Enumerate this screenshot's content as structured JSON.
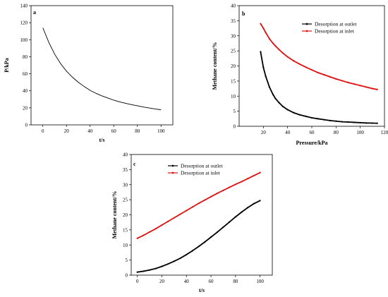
{
  "chart_data": [
    {
      "panel": "a",
      "type": "line",
      "xlabel": "t/s",
      "ylabel": "P/kPa",
      "xlim": [
        -10,
        110
      ],
      "ylim": [
        0,
        140
      ],
      "xticks": [
        0,
        20,
        40,
        60,
        80,
        100
      ],
      "yticks": [
        0,
        20,
        40,
        60,
        80,
        100,
        120,
        140
      ],
      "series": [
        {
          "color": "#000000",
          "marker": "none",
          "x": [
            0,
            5,
            10,
            15,
            20,
            25,
            30,
            35,
            40,
            45,
            50,
            55,
            60,
            65,
            70,
            75,
            80,
            85,
            90,
            95,
            100
          ],
          "y": [
            114,
            97,
            83,
            72,
            63,
            56,
            50,
            45,
            40.5,
            37,
            34,
            31.5,
            29,
            27,
            25.3,
            23.8,
            22.4,
            21,
            19.8,
            18.7,
            17.7
          ]
        }
      ]
    },
    {
      "panel": "b",
      "type": "line",
      "xlabel": "Pressure/kPa",
      "ylabel": "Methane content/%",
      "xlim": [
        0,
        120
      ],
      "ylim": [
        0,
        40
      ],
      "xticks": [
        20,
        40,
        60,
        80,
        100,
        120
      ],
      "yticks": [
        0,
        5,
        10,
        15,
        20,
        25,
        30,
        35,
        40
      ],
      "legend_position": "top-right",
      "series": [
        {
          "name": "Desorption at outlet",
          "color": "#000000",
          "marker": "dot",
          "x": [
            17.7,
            20,
            22,
            25,
            28,
            30,
            33,
            36,
            40,
            45,
            50,
            55,
            60,
            65,
            70,
            75,
            80,
            85,
            90,
            95,
            100,
            105,
            110,
            114
          ],
          "y": [
            24.7,
            19.5,
            16.5,
            13,
            10.5,
            9.2,
            7.8,
            6.6,
            5.5,
            4.5,
            3.8,
            3.3,
            2.8,
            2.5,
            2.2,
            1.9,
            1.7,
            1.5,
            1.4,
            1.3,
            1.2,
            1.1,
            1.05,
            1
          ]
        },
        {
          "name": "Desorption at inlet",
          "color": "#e01010",
          "marker": "dot",
          "x": [
            17.7,
            20,
            22,
            25,
            28,
            30,
            33,
            36,
            40,
            45,
            50,
            55,
            60,
            65,
            70,
            75,
            80,
            85,
            90,
            95,
            100,
            105,
            110,
            114
          ],
          "y": [
            34,
            32.5,
            31,
            29,
            27.5,
            26.6,
            25.4,
            24.3,
            23,
            21.7,
            20.6,
            19.6,
            18.7,
            17.8,
            17.1,
            16.4,
            15.7,
            15.1,
            14.5,
            14,
            13.5,
            13,
            12.5,
            12.2
          ]
        }
      ]
    },
    {
      "panel": "c",
      "type": "line",
      "xlabel": "t/s",
      "ylabel": "Methane content/%",
      "xlim": [
        -5,
        110
      ],
      "ylim": [
        0,
        40
      ],
      "xticks": [
        0,
        20,
        40,
        60,
        80,
        100
      ],
      "yticks": [
        0,
        5,
        10,
        15,
        20,
        25,
        30,
        35,
        40
      ],
      "legend_position": "top-left",
      "series": [
        {
          "name": "Desorption at outlet",
          "color": "#000000",
          "marker": "dot",
          "x": [
            0,
            5,
            10,
            15,
            20,
            25,
            30,
            35,
            40,
            45,
            50,
            55,
            60,
            65,
            70,
            75,
            80,
            85,
            90,
            95,
            100
          ],
          "y": [
            1,
            1.3,
            1.7,
            2.2,
            2.9,
            3.7,
            4.6,
            5.6,
            6.8,
            8.1,
            9.5,
            11,
            12.6,
            14.2,
            15.9,
            17.6,
            19.3,
            20.9,
            22.4,
            23.7,
            24.7
          ]
        },
        {
          "name": "Desorption at inlet",
          "color": "#e01010",
          "marker": "dot",
          "x": [
            0,
            5,
            10,
            15,
            20,
            25,
            30,
            35,
            40,
            45,
            50,
            55,
            60,
            65,
            70,
            75,
            80,
            85,
            90,
            95,
            100
          ],
          "y": [
            12.2,
            13.2,
            14.3,
            15.4,
            16.6,
            17.8,
            19,
            20.2,
            21.4,
            22.6,
            23.8,
            24.9,
            26,
            27.1,
            28.1,
            29.1,
            30.1,
            31,
            32,
            33,
            34
          ]
        }
      ]
    }
  ]
}
